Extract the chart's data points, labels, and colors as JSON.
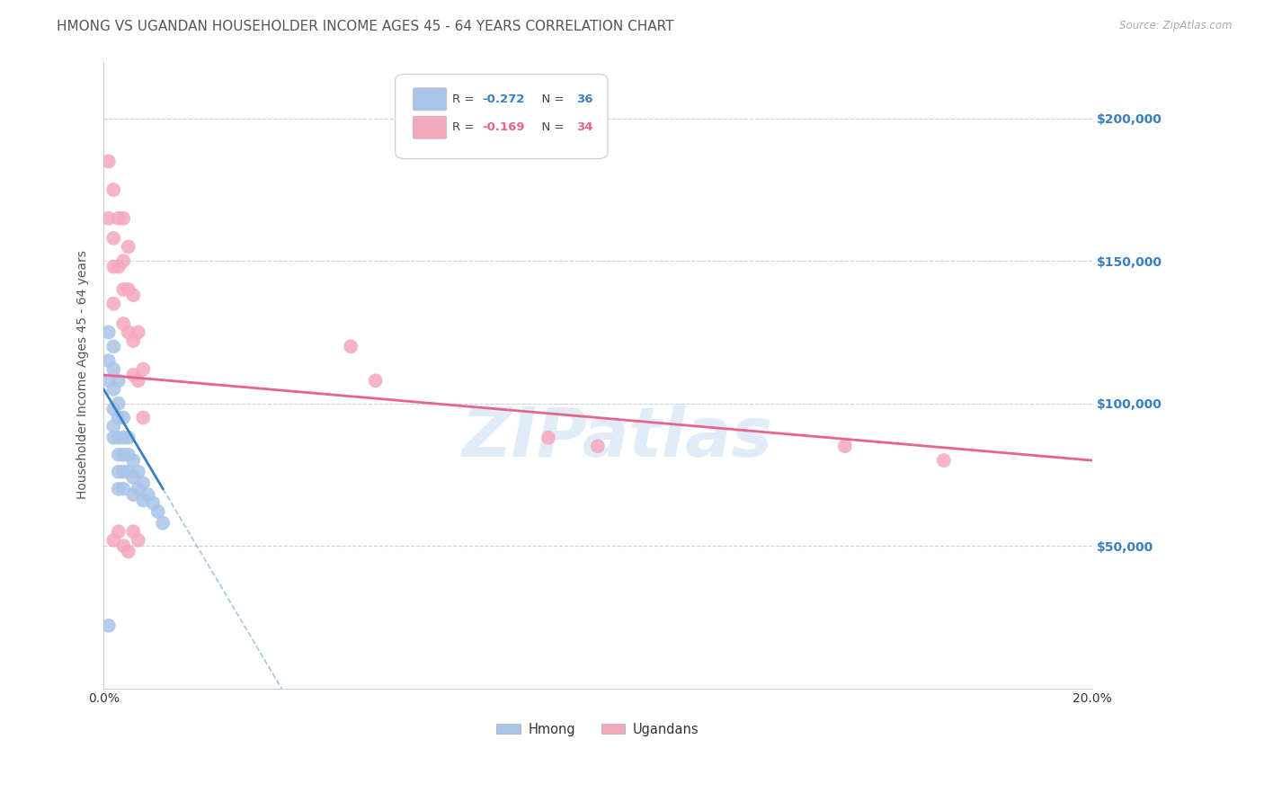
{
  "title": "HMONG VS UGANDAN HOUSEHOLDER INCOME AGES 45 - 64 YEARS CORRELATION CHART",
  "source": "Source: ZipAtlas.com",
  "ylabel": "Householder Income Ages 45 - 64 years",
  "xlim": [
    0,
    0.2
  ],
  "ylim": [
    0,
    220000
  ],
  "yticks": [
    50000,
    100000,
    150000,
    200000
  ],
  "ytick_labels": [
    "$50,000",
    "$100,000",
    "$150,000",
    "$200,000"
  ],
  "xticks": [
    0.0,
    0.05,
    0.1,
    0.15,
    0.2
  ],
  "xtick_labels": [
    "0.0%",
    "",
    "",
    "",
    "20.0%"
  ],
  "background_color": "#ffffff",
  "grid_color": "#d0d0d0",
  "hmong_color": "#aac4e8",
  "ugandan_color": "#f4a8bc",
  "hmong_line_color": "#3a7fc1",
  "ugandan_line_color": "#e8648c",
  "hmong_R": -0.272,
  "hmong_N": 36,
  "ugandan_R": -0.169,
  "ugandan_N": 34,
  "legend_labels": [
    "Hmong",
    "Ugandans"
  ],
  "hmong_x": [
    0.001,
    0.001,
    0.001,
    0.002,
    0.002,
    0.002,
    0.002,
    0.002,
    0.002,
    0.003,
    0.003,
    0.003,
    0.003,
    0.003,
    0.003,
    0.003,
    0.004,
    0.004,
    0.004,
    0.004,
    0.004,
    0.005,
    0.005,
    0.005,
    0.006,
    0.006,
    0.006,
    0.007,
    0.007,
    0.008,
    0.008,
    0.009,
    0.01,
    0.011,
    0.012,
    0.001
  ],
  "hmong_y": [
    125000,
    115000,
    108000,
    120000,
    112000,
    105000,
    98000,
    92000,
    88000,
    108000,
    100000,
    95000,
    88000,
    82000,
    76000,
    70000,
    95000,
    88000,
    82000,
    76000,
    70000,
    88000,
    82000,
    76000,
    80000,
    74000,
    68000,
    76000,
    70000,
    72000,
    66000,
    68000,
    65000,
    62000,
    58000,
    22000
  ],
  "ugandan_x": [
    0.001,
    0.001,
    0.002,
    0.002,
    0.002,
    0.002,
    0.003,
    0.003,
    0.004,
    0.004,
    0.004,
    0.004,
    0.005,
    0.005,
    0.005,
    0.006,
    0.006,
    0.006,
    0.007,
    0.007,
    0.008,
    0.008,
    0.05,
    0.055,
    0.09,
    0.1,
    0.15,
    0.17,
    0.002,
    0.003,
    0.004,
    0.005,
    0.006,
    0.007
  ],
  "ugandan_y": [
    185000,
    165000,
    175000,
    158000,
    148000,
    135000,
    165000,
    148000,
    165000,
    150000,
    140000,
    128000,
    155000,
    140000,
    125000,
    138000,
    122000,
    110000,
    125000,
    108000,
    112000,
    95000,
    120000,
    108000,
    88000,
    85000,
    85000,
    80000,
    52000,
    55000,
    50000,
    48000,
    55000,
    52000
  ],
  "title_fontsize": 11,
  "axis_label_fontsize": 10,
  "tick_fontsize": 10,
  "ytick_color": "#3a7fc1",
  "title_color": "#555555",
  "source_color": "#aaaaaa"
}
